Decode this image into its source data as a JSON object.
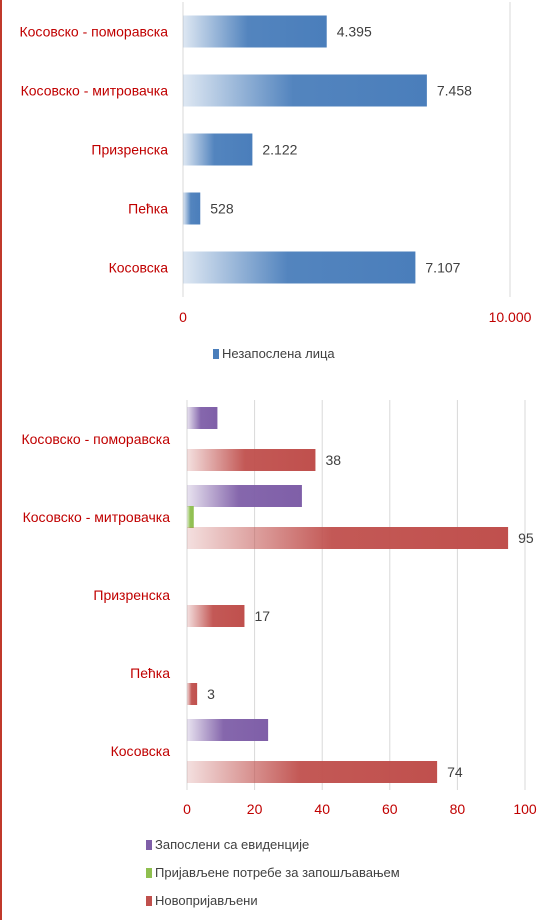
{
  "chart_data": [
    {
      "type": "bar",
      "orientation": "horizontal",
      "categories": [
        "Косовско - поморавска",
        "Косовско - митровачка",
        "Призренска",
        "Пећка",
        "Косовска"
      ],
      "series": [
        {
          "name": "Незапослена лица",
          "values": [
            4395,
            7458,
            2122,
            528,
            7107
          ],
          "labels": [
            "4.395",
            "7.458",
            "2.122",
            "528",
            "7.107"
          ],
          "color": "#4a7ebb"
        }
      ],
      "xlim": [
        0,
        10000
      ],
      "ticks": [
        0,
        10000
      ],
      "tick_labels": [
        "0",
        "10.000"
      ],
      "grid": false,
      "legend": "bottom"
    },
    {
      "type": "bar",
      "orientation": "horizontal",
      "categories": [
        "Косовско - поморавска",
        "Косовско - митровачка",
        "Призренска",
        "Пећка",
        "Косовска"
      ],
      "series": [
        {
          "name": "Запослени са евиденције",
          "values": [
            9,
            34,
            0,
            0,
            24
          ],
          "labels": [
            "",
            "",
            "",
            "",
            ""
          ],
          "color": "#7f5fa8"
        },
        {
          "name": "Пријављене потребе за запошљавањем",
          "values": [
            0,
            2,
            0,
            0,
            0
          ],
          "labels": [
            "",
            "",
            "",
            "",
            ""
          ],
          "color": "#8fbf4f"
        },
        {
          "name": "Новопријављени",
          "values": [
            38,
            95,
            17,
            3,
            74
          ],
          "labels": [
            "38",
            "95",
            "17",
            "3",
            "74"
          ],
          "color": "#c0504d"
        }
      ],
      "xlim": [
        0,
        100
      ],
      "ticks": [
        0,
        20,
        40,
        60,
        80,
        100
      ],
      "tick_labels": [
        "0",
        "20",
        "40",
        "60",
        "80",
        "100"
      ],
      "grid": true,
      "legend": "bottom"
    }
  ]
}
